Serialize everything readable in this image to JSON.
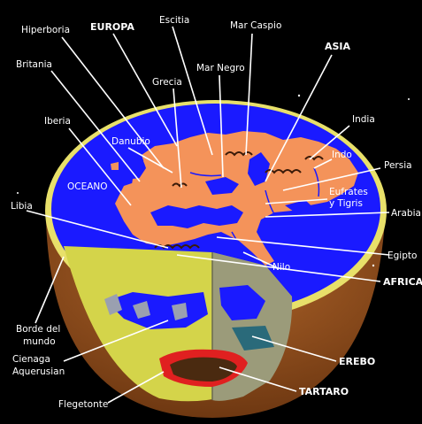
{
  "labels": {
    "hiperboria": "Hiperboria",
    "europa": "EUROPA",
    "escitia": "Escitia",
    "mar_caspio": "Mar Caspio",
    "britania": "Britania",
    "mar_negro": "Mar Negro",
    "asia": "ASIA",
    "grecia": "Grecia",
    "iberia": "Iberia",
    "india": "India",
    "danubio": "Danubio",
    "indo": "Indo",
    "persia": "Persia",
    "oceano": "OCEANO",
    "eufrates_line1": "Eufrates",
    "eufrates_line2": "y Tigris",
    "libia": "Libia",
    "arabia": "Arabia",
    "egipto": "Egipto",
    "nilo": "Nilo",
    "africa": "AFRICA",
    "borde_line1": "Borde del",
    "borde_line2": "mundo",
    "cienaga_line1": "Cienaga",
    "cienaga_line2": "Aquerusian",
    "erebo": "EREBO",
    "tartaro": "TARTARO",
    "flegetonte": "Flegetonte"
  },
  "colors": {
    "background": "#000000",
    "ocean": "#1a1aff",
    "land": "#f4935a",
    "rim": "#e8e06a",
    "bowl": "#8a4a1a",
    "underworld": "#d8d84a",
    "inner_wall": "#9a9a7a",
    "fire": "#e02020",
    "tartarus": "#4a2a10"
  }
}
